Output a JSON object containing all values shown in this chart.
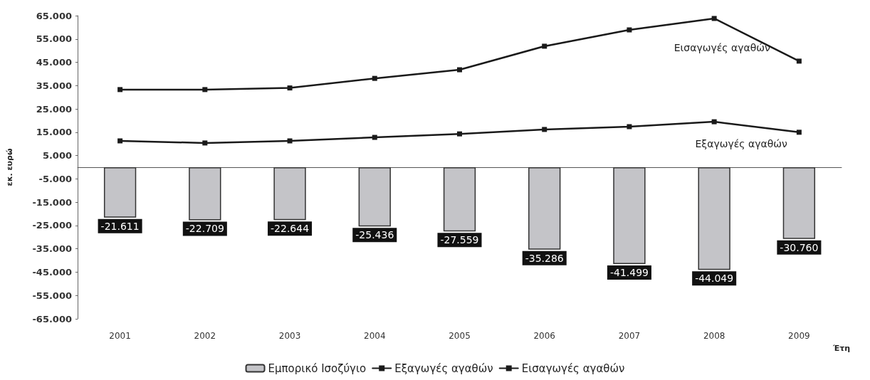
{
  "chart_data": {
    "type": "bar",
    "ylabel": "εκ. ευρώ",
    "xlabel": "Έτη",
    "categories": [
      "2001",
      "2002",
      "2003",
      "2004",
      "2005",
      "2006",
      "2007",
      "2008",
      "2009"
    ],
    "series": [
      {
        "name": "Εμπορικό Ισοζύγιο",
        "color": "#c4c4c8",
        "values": [
          -21611,
          -22709,
          -22644,
          -25436,
          -27559,
          -35286,
          -41499,
          -44049,
          -30760
        ],
        "value_labels": [
          "-21.611",
          "-22.709",
          "-22.644",
          "-25.436",
          "-27.559",
          "-35.286",
          "-41.499",
          "-44.049",
          "-30.760"
        ]
      },
      {
        "name": "Εξαγωγές αγαθών",
        "type": "line",
        "color": "#1a1a1a",
        "values": [
          11300,
          10400,
          11300,
          12800,
          14300,
          16200,
          17400,
          19500,
          15000
        ]
      },
      {
        "name": "Εισαγωγές αγαθών",
        "type": "line",
        "color": "#1a1a1a",
        "values": [
          33300,
          33300,
          34000,
          38100,
          41800,
          51900,
          58900,
          63800,
          45500
        ]
      }
    ],
    "ylim": [
      -65000,
      65000
    ],
    "yticks": [
      {
        "value": -65000,
        "label": "-65.000"
      },
      {
        "value": -55000,
        "label": "-55.000"
      },
      {
        "value": -45000,
        "label": "-45.000"
      },
      {
        "value": -35000,
        "label": "-35.000"
      },
      {
        "value": -25000,
        "label": "-25.000"
      },
      {
        "value": -15000,
        "label": "-15.000"
      },
      {
        "value": -5000,
        "label": "-5.000"
      },
      {
        "value": 5000,
        "label": "5.000"
      },
      {
        "value": 15000,
        "label": "15.000"
      },
      {
        "value": 25000,
        "label": "25.000"
      },
      {
        "value": 35000,
        "label": "35.000"
      },
      {
        "value": 45000,
        "label": "45.000"
      },
      {
        "value": 55000,
        "label": "55.000"
      },
      {
        "value": 65000,
        "label": "65.000"
      }
    ],
    "annotations": [
      "Εισαγωγές αγαθών",
      "Εξαγωγές αγαθών"
    ],
    "marker": "square",
    "line_style": "solid",
    "grid": false,
    "legend": "bottom"
  }
}
